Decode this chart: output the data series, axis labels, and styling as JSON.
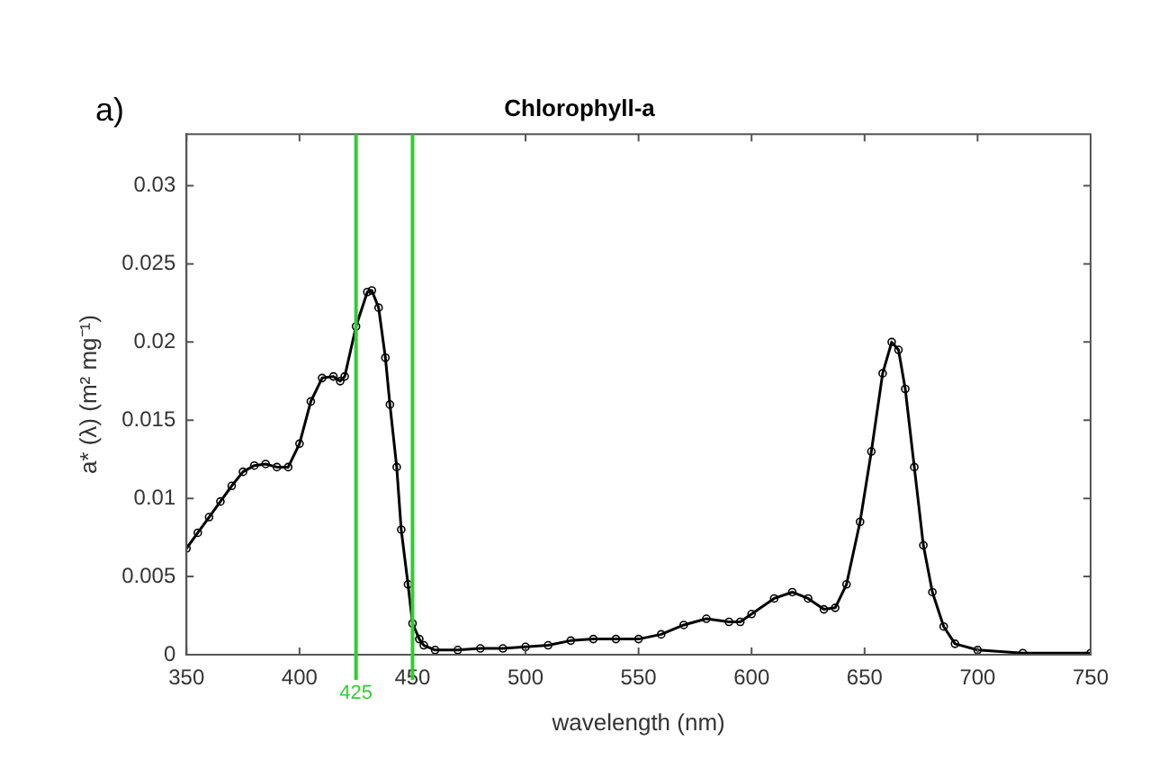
{
  "chart_data": {
    "type": "line",
    "title": "Chlorophyll-a",
    "xlabel": "wavelength (nm)",
    "ylabel": "a* (λ) (m² mg⁻¹)",
    "annotations": [
      "a)"
    ],
    "x": [
      350,
      355,
      360,
      365,
      370,
      375,
      380,
      385,
      390,
      395,
      400,
      405,
      410,
      415,
      418,
      420,
      425,
      430,
      432,
      435,
      438,
      440,
      443,
      445,
      448,
      450,
      453,
      455,
      460,
      470,
      480,
      490,
      500,
      510,
      520,
      530,
      540,
      550,
      560,
      570,
      580,
      590,
      595,
      600,
      610,
      618,
      625,
      632,
      637,
      642,
      648,
      653,
      658,
      662,
      665,
      668,
      672,
      676,
      680,
      685,
      690,
      700,
      720,
      750
    ],
    "series": [
      {
        "color": "#000000",
        "values": [
          0.0068,
          0.0078,
          0.0088,
          0.0098,
          0.0108,
          0.0117,
          0.0121,
          0.0122,
          0.012,
          0.012,
          0.0135,
          0.0162,
          0.0177,
          0.0178,
          0.0175,
          0.0178,
          0.021,
          0.0232,
          0.0233,
          0.0222,
          0.019,
          0.016,
          0.012,
          0.008,
          0.0045,
          0.002,
          0.001,
          0.0006,
          0.0003,
          0.0003,
          0.0004,
          0.0004,
          0.0005,
          0.0006,
          0.0009,
          0.001,
          0.001,
          0.001,
          0.0013,
          0.0019,
          0.0023,
          0.0021,
          0.0021,
          0.0026,
          0.0036,
          0.004,
          0.0036,
          0.0029,
          0.003,
          0.0045,
          0.0085,
          0.013,
          0.018,
          0.02,
          0.0195,
          0.017,
          0.012,
          0.007,
          0.004,
          0.0018,
          0.0007,
          0.0003,
          0.0001,
          0.0001
        ]
      }
    ],
    "xlim": [
      350,
      750
    ],
    "xticks": [
      350,
      400,
      450,
      500,
      550,
      600,
      650,
      700,
      750
    ],
    "ylim": [
      0,
      0.0333
    ],
    "yticks": [
      0,
      0.005,
      0.01,
      0.015,
      0.02,
      0.025,
      0.03
    ],
    "ref_lines": [
      {
        "axis": "x",
        "value": 425,
        "label": "425",
        "color": "#33cc33"
      },
      {
        "axis": "x",
        "value": 450,
        "color": "#33cc33"
      }
    ],
    "grid": false,
    "legend": false,
    "marker": "circle",
    "line_style": "solid"
  }
}
